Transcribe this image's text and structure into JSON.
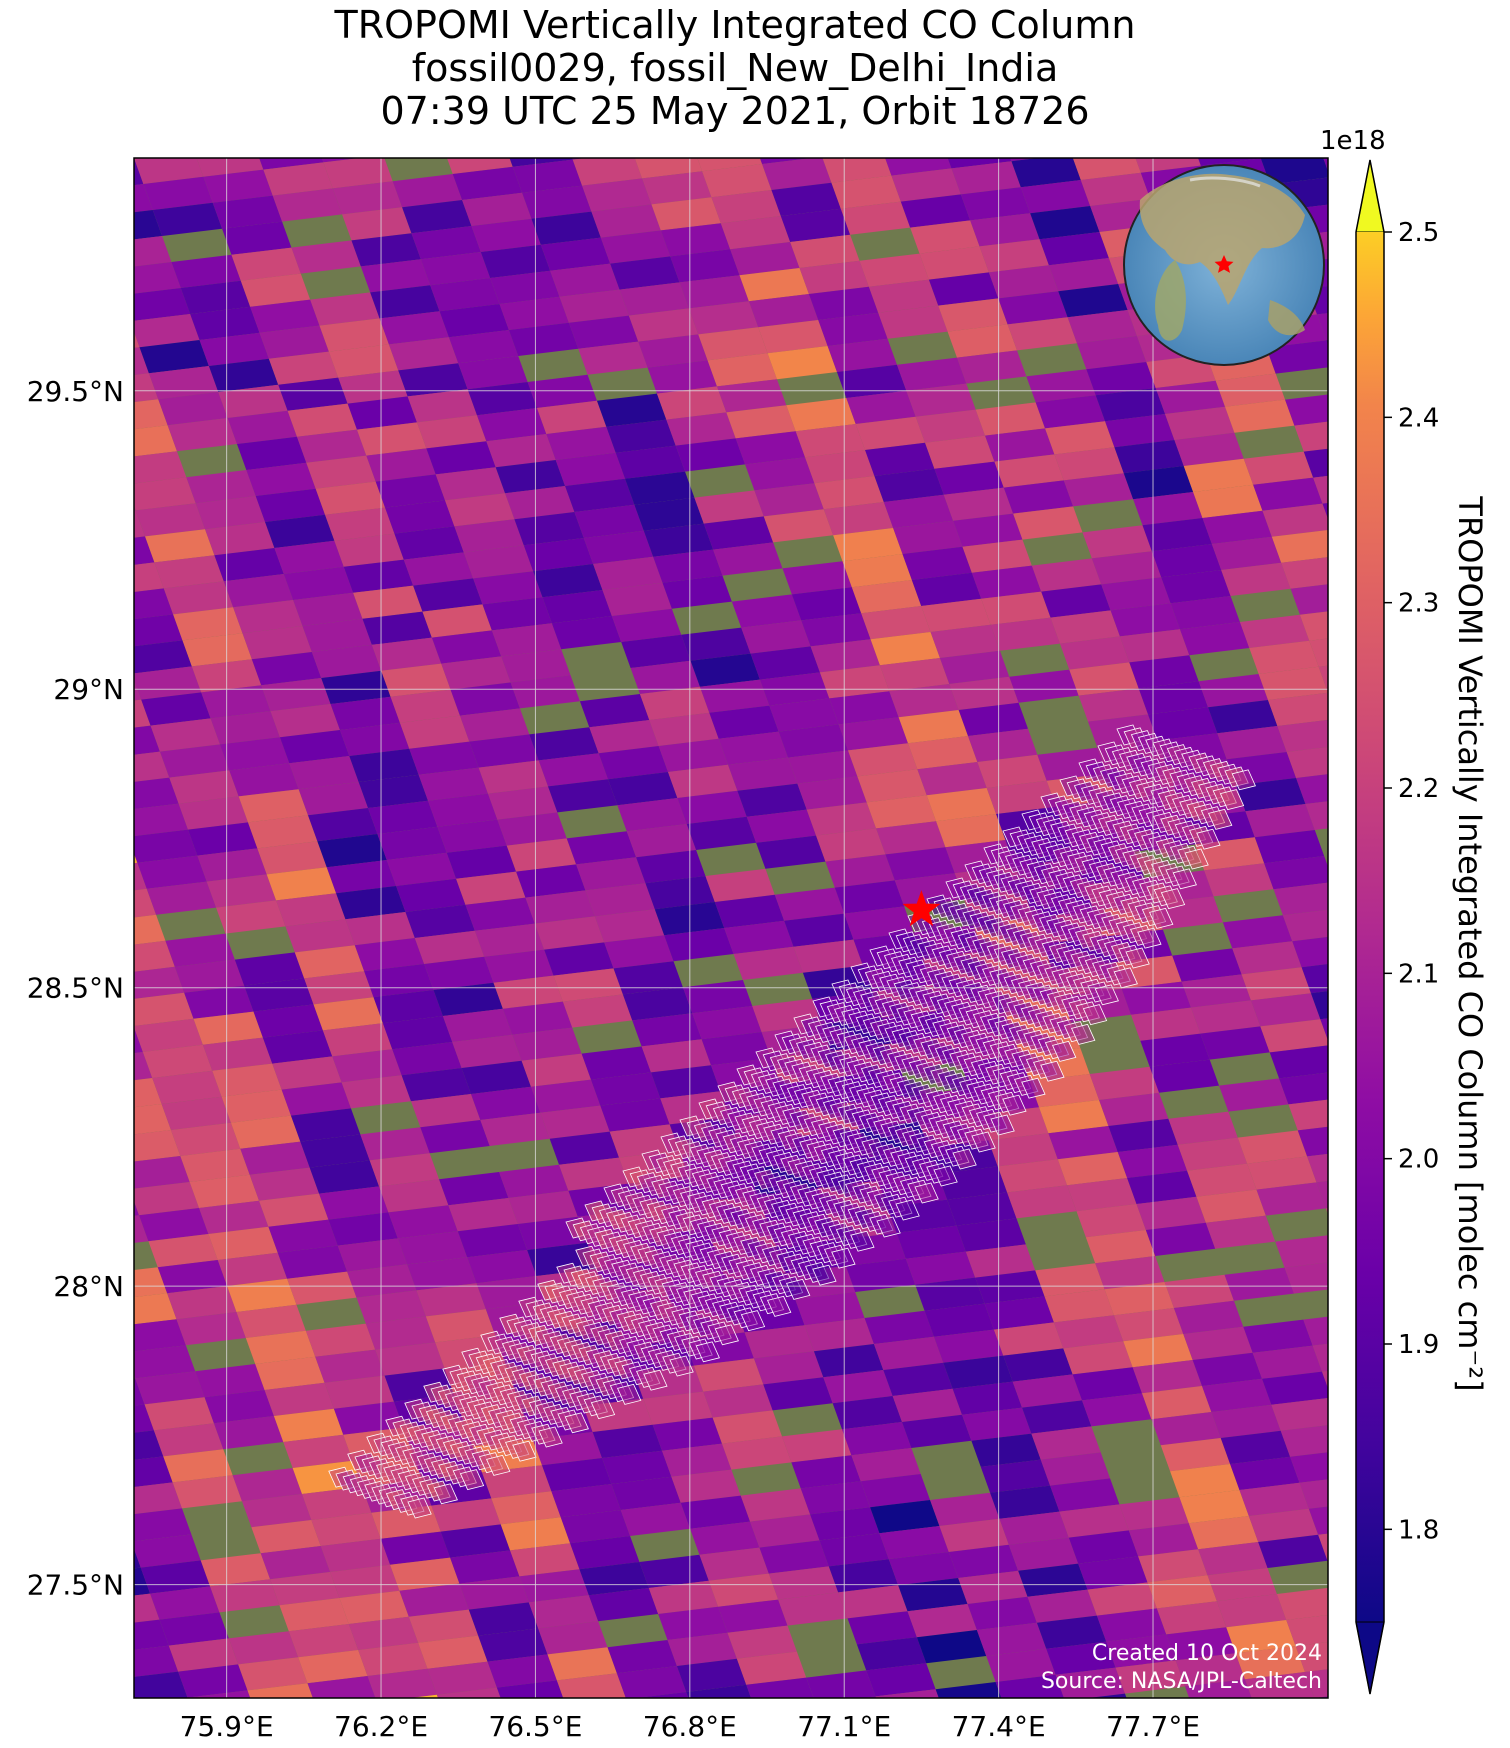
{
  "title": {
    "line1": "TROPOMI Vertically Integrated CO Column",
    "line2": "fossil0029, fossil_New_Delhi_India",
    "line3": "07:39 UTC 25 May 2021, Orbit 18726"
  },
  "map": {
    "lon_range": [
      75.72,
      78.04
    ],
    "lat_range": [
      27.31,
      29.89
    ],
    "lon_ticks": [
      {
        "value": 75.9,
        "label": "75.9°E"
      },
      {
        "value": 76.2,
        "label": "76.2°E"
      },
      {
        "value": 76.5,
        "label": "76.5°E"
      },
      {
        "value": 76.8,
        "label": "76.8°E"
      },
      {
        "value": 77.1,
        "label": "77.1°E"
      },
      {
        "value": 77.4,
        "label": "77.4°E"
      },
      {
        "value": 77.7,
        "label": "77.7°E"
      }
    ],
    "lat_ticks": [
      {
        "value": 29.5,
        "label": "29.5°N"
      },
      {
        "value": 29.0,
        "label": "29°N"
      },
      {
        "value": 28.5,
        "label": "28.5°N"
      },
      {
        "value": 28.0,
        "label": "28°N"
      },
      {
        "value": 27.5,
        "label": "27.5°N"
      }
    ],
    "grid": true,
    "target": {
      "lon": 77.25,
      "lat": 28.63,
      "marker": "star",
      "color": "#ff0000"
    },
    "inset_globe": {
      "position": "top-right",
      "marker": "star",
      "marker_color": "#ff0000"
    },
    "overlay": "white-outlined footprint grid of a second observation pattern"
  },
  "colorbar": {
    "label": "TROPOMI Vertically Integrated CO Column [molec cm⁻²]",
    "scale_exponent": "1e18",
    "vmin": 1.75,
    "vmax": 2.5,
    "ticks": [
      {
        "value": 1.8,
        "label": "1.8"
      },
      {
        "value": 1.9,
        "label": "1.9"
      },
      {
        "value": 2.0,
        "label": "2.0"
      },
      {
        "value": 2.1,
        "label": "2.1"
      },
      {
        "value": 2.2,
        "label": "2.2"
      },
      {
        "value": 2.3,
        "label": "2.3"
      },
      {
        "value": 2.4,
        "label": "2.4"
      },
      {
        "value": 2.5,
        "label": "2.5"
      }
    ],
    "extend": "both",
    "colormap": "plasma"
  },
  "credits": {
    "created": "Created 10 Oct 2024",
    "source": "Source: NASA/JPL-Caltech"
  }
}
